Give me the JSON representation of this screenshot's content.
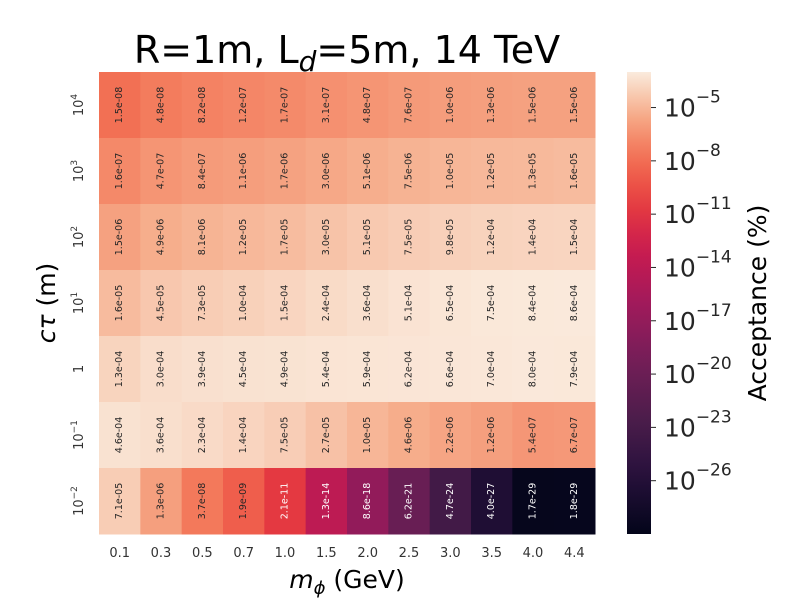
{
  "chart_data": {
    "type": "heatmap",
    "title": "R=1m, L_d=5m, 14 TeV",
    "title_parts": {
      "prefix": "R=1m, L",
      "subscript": "d",
      "suffix": "=5m, 14 TeV"
    },
    "xlabel": "m_phi (GeV)",
    "xlabel_parts": {
      "symbol": "m",
      "subscript": "ϕ",
      "unit": " (GeV)"
    },
    "ylabel": "c tau (m)",
    "ylabel_parts": {
      "symbol": "cτ",
      "unit": " (m)"
    },
    "x_categories": [
      "0.1",
      "0.3",
      "0.5",
      "0.7",
      "1.0",
      "1.5",
      "2.0",
      "2.5",
      "3.0",
      "3.5",
      "4.0",
      "4.4"
    ],
    "y_categories": [
      {
        "base": "10",
        "exp": "4"
      },
      {
        "base": "10",
        "exp": "3"
      },
      {
        "base": "10",
        "exp": "2"
      },
      {
        "base": "10",
        "exp": "1"
      },
      {
        "base": "1",
        "exp": ""
      },
      {
        "base": "10",
        "exp": "−1"
      },
      {
        "base": "10",
        "exp": "−2"
      }
    ],
    "values": [
      [
        "1.5e-08",
        "4.8e-08",
        "8.2e-08",
        "1.2e-07",
        "1.7e-07",
        "3.1e-07",
        "4.8e-07",
        "7.6e-07",
        "1.0e-06",
        "1.3e-06",
        "1.5e-06",
        "1.5e-06"
      ],
      [
        "1.6e-07",
        "4.7e-07",
        "8.4e-07",
        "1.1e-06",
        "1.7e-06",
        "3.0e-06",
        "5.1e-06",
        "7.5e-06",
        "1.0e-05",
        "1.2e-05",
        "1.3e-05",
        "1.6e-05"
      ],
      [
        "1.5e-06",
        "4.9e-06",
        "8.1e-06",
        "1.2e-05",
        "1.7e-05",
        "3.0e-05",
        "5.1e-05",
        "7.5e-05",
        "9.8e-05",
        "1.2e-04",
        "1.4e-04",
        "1.5e-04"
      ],
      [
        "1.6e-05",
        "4.5e-05",
        "7.3e-05",
        "1.0e-04",
        "1.5e-04",
        "2.4e-04",
        "3.6e-04",
        "5.1e-04",
        "6.5e-04",
        "7.5e-04",
        "8.4e-04",
        "8.6e-04"
      ],
      [
        "1.3e-04",
        "3.0e-04",
        "3.9e-04",
        "4.5e-04",
        "4.9e-04",
        "5.4e-04",
        "5.9e-04",
        "6.2e-04",
        "6.6e-04",
        "7.0e-04",
        "8.0e-04",
        "7.9e-04"
      ],
      [
        "4.6e-04",
        "3.6e-04",
        "2.3e-04",
        "1.4e-04",
        "7.5e-05",
        "2.7e-05",
        "1.0e-05",
        "4.6e-06",
        "2.2e-06",
        "1.2e-06",
        "5.4e-07",
        "6.7e-07"
      ],
      [
        "7.1e-05",
        "1.3e-06",
        "3.7e-08",
        "1.9e-09",
        "2.1e-11",
        "1.3e-14",
        "8.6e-18",
        "6.2e-21",
        "4.7e-24",
        "4.0e-27",
        "1.7e-29",
        "1.8e-29"
      ]
    ],
    "colorbar": {
      "label": "Acceptance (%)",
      "scale": "log",
      "log10_range": [
        -29,
        -3.0
      ],
      "ticks": [
        {
          "base": "10",
          "exp": "−5",
          "log10": -5
        },
        {
          "base": "10",
          "exp": "−8",
          "log10": -8
        },
        {
          "base": "10",
          "exp": "−11",
          "log10": -11
        },
        {
          "base": "10",
          "exp": "−14",
          "log10": -14
        },
        {
          "base": "10",
          "exp": "−17",
          "log10": -17
        },
        {
          "base": "10",
          "exp": "−20",
          "log10": -20
        },
        {
          "base": "10",
          "exp": "−23",
          "log10": -23
        },
        {
          "base": "10",
          "exp": "−26",
          "log10": -26
        }
      ],
      "colormap": "rocket"
    }
  }
}
